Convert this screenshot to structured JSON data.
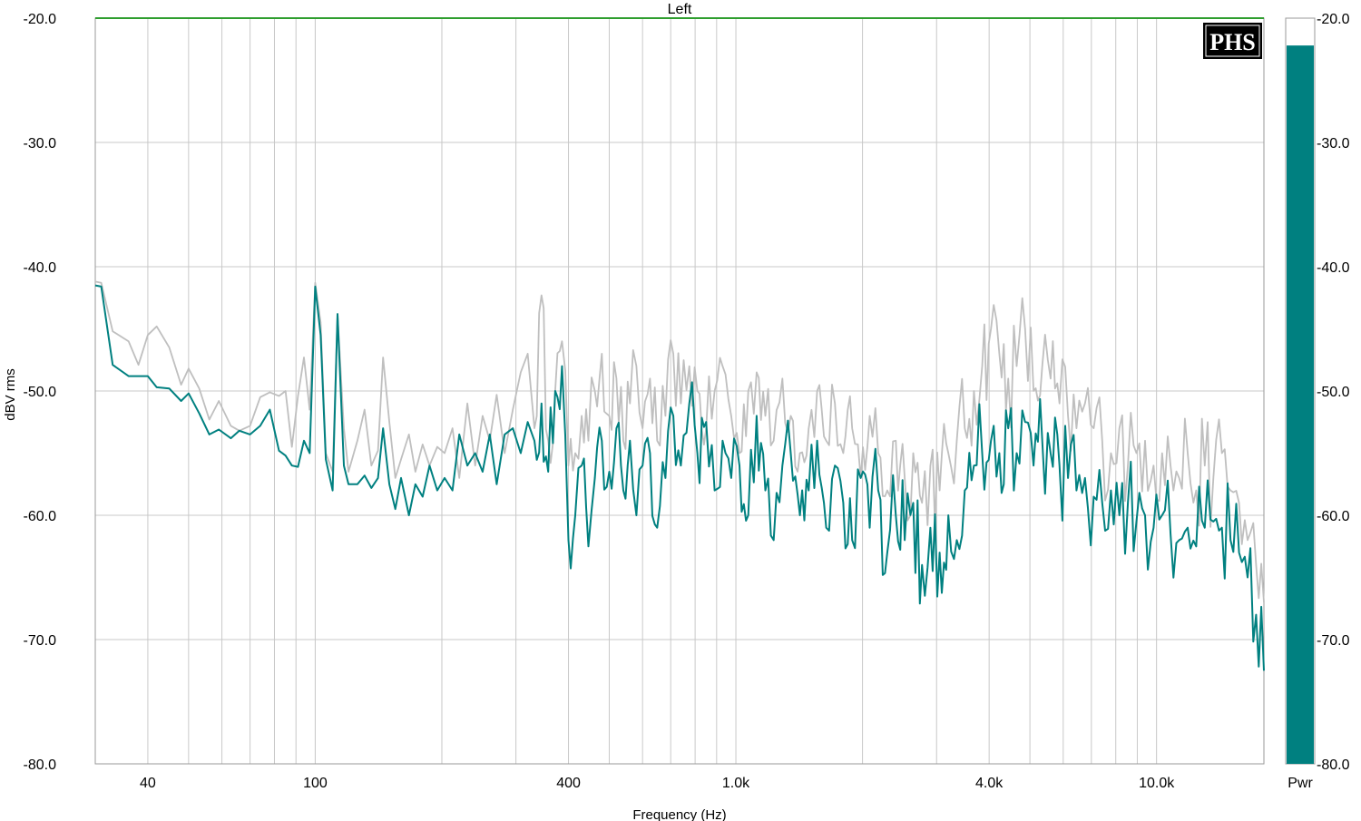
{
  "chart_data": {
    "type": "line",
    "title": "Left",
    "xlabel": "Frequency (Hz)",
    "ylabel": "dBV rms",
    "x_scale": "log",
    "xlim": [
      30,
      18000
    ],
    "ylim": [
      -80,
      -20
    ],
    "x_ticks": [
      {
        "value": 40,
        "label": "40"
      },
      {
        "value": 100,
        "label": "100"
      },
      {
        "value": 400,
        "label": "400"
      },
      {
        "value": 1000,
        "label": "1.0k"
      },
      {
        "value": 4000,
        "label": "4.0k"
      },
      {
        "value": 10000,
        "label": "10.0k"
      }
    ],
    "y_ticks": [
      {
        "value": -20,
        "label": "-20.0"
      },
      {
        "value": -30,
        "label": "-30.0"
      },
      {
        "value": -40,
        "label": "-40.0"
      },
      {
        "value": -50,
        "label": "-50.0"
      },
      {
        "value": -60,
        "label": "-60.0"
      },
      {
        "value": -70,
        "label": "-70.0"
      },
      {
        "value": -80,
        "label": "-80.0"
      }
    ],
    "grid": true,
    "reference_line": {
      "y": -20,
      "color": "#2e9e2e"
    },
    "series": [
      {
        "color": "#bfbfbf",
        "points": [
          [
            30,
            -41.2
          ],
          [
            31,
            -41.3
          ],
          [
            33,
            -45.2
          ],
          [
            36,
            -46
          ],
          [
            38,
            -47.9
          ],
          [
            40,
            -45.5
          ],
          [
            42,
            -44.8
          ],
          [
            45,
            -46.5
          ],
          [
            48,
            -49.5
          ],
          [
            50,
            -48.2
          ],
          [
            53,
            -49.8
          ],
          [
            56,
            -52.3
          ],
          [
            59,
            -50.8
          ],
          [
            63,
            -52.8
          ],
          [
            66,
            -53.2
          ],
          [
            70,
            -52.8
          ],
          [
            74,
            -50.5
          ],
          [
            78,
            -50.1
          ],
          [
            82,
            -50.4
          ],
          [
            85,
            -50
          ],
          [
            88,
            -54.5
          ],
          [
            91,
            -50.4
          ],
          [
            94,
            -47.3
          ],
          [
            97,
            -51.5
          ],
          [
            100,
            -41.3
          ],
          [
            103,
            -44.5
          ],
          [
            106,
            -55
          ],
          [
            110,
            -56.5
          ],
          [
            113,
            -43.8
          ],
          [
            117,
            -53
          ],
          [
            120,
            -56.5
          ],
          [
            126,
            -54
          ],
          [
            131,
            -51.5
          ],
          [
            136,
            -56
          ],
          [
            141,
            -54.8
          ],
          [
            145,
            -47.3
          ],
          [
            150,
            -52.5
          ],
          [
            155,
            -57
          ],
          [
            160,
            -55.5
          ],
          [
            167,
            -53.5
          ],
          [
            173,
            -56.5
          ],
          [
            180,
            -54.3
          ],
          [
            187,
            -56
          ],
          [
            195,
            -54.5
          ],
          [
            203,
            -55
          ],
          [
            212,
            -53
          ],
          [
            220,
            -57
          ],
          [
            230,
            -51
          ],
          [
            240,
            -56
          ],
          [
            250,
            -52
          ],
          [
            260,
            -54
          ],
          [
            270,
            -50.3
          ],
          [
            282,
            -55
          ],
          [
            295,
            -51.5
          ],
          [
            308,
            -48.5
          ],
          [
            320,
            -47
          ],
          [
            332,
            -53
          ],
          [
            345,
            -42.3
          ],
          [
            358,
            -54
          ],
          [
            372,
            -50
          ],
          [
            386,
            -46
          ],
          [
            400,
            -56
          ],
          [
            415,
            -55
          ],
          [
            430,
            -52
          ],
          [
            446,
            -54
          ],
          [
            462,
            -50
          ],
          [
            480,
            -47
          ],
          [
            500,
            -52
          ],
          [
            520,
            -49
          ],
          [
            540,
            -54
          ],
          [
            560,
            -51
          ],
          [
            580,
            -48
          ],
          [
            600,
            -53
          ],
          [
            625,
            -49
          ],
          [
            650,
            -54
          ],
          [
            680,
            -52
          ],
          [
            710,
            -47
          ],
          [
            740,
            -51
          ],
          [
            775,
            -48
          ],
          [
            810,
            -50
          ],
          [
            850,
            -53
          ],
          [
            890,
            -50
          ],
          [
            930,
            -48
          ],
          [
            975,
            -52
          ],
          [
            1020,
            -55
          ],
          [
            1070,
            -50
          ],
          [
            1120,
            -48.5
          ],
          [
            1175,
            -52
          ],
          [
            1230,
            -54
          ],
          [
            1290,
            -49
          ],
          [
            1350,
            -52
          ],
          [
            1420,
            -55
          ],
          [
            1490,
            -53
          ],
          [
            1560,
            -50
          ],
          [
            1640,
            -54
          ],
          [
            1720,
            -51
          ],
          [
            1800,
            -55
          ],
          [
            1890,
            -53
          ],
          [
            1980,
            -57
          ],
          [
            2080,
            -52
          ],
          [
            2180,
            -55
          ],
          [
            2290,
            -58
          ],
          [
            2400,
            -54
          ],
          [
            2520,
            -57
          ],
          [
            2640,
            -55
          ],
          [
            2770,
            -59
          ],
          [
            2900,
            -56
          ],
          [
            3050,
            -58
          ],
          [
            3200,
            -55
          ],
          [
            3350,
            -54
          ],
          [
            3500,
            -53
          ],
          [
            3680,
            -50
          ],
          [
            3850,
            -48
          ],
          [
            4040,
            -45
          ],
          [
            4230,
            -47
          ],
          [
            4440,
            -49
          ],
          [
            4650,
            -48
          ],
          [
            4870,
            -45
          ],
          [
            5100,
            -50
          ],
          [
            5350,
            -48
          ],
          [
            5600,
            -49
          ],
          [
            5880,
            -51
          ],
          [
            6160,
            -52
          ],
          [
            6450,
            -53
          ],
          [
            6760,
            -51
          ],
          [
            7090,
            -53
          ],
          [
            7430,
            -54
          ],
          [
            7790,
            -55
          ],
          [
            8160,
            -53
          ],
          [
            8550,
            -56
          ],
          [
            8960,
            -55
          ],
          [
            9390,
            -54
          ],
          [
            9840,
            -56
          ],
          [
            10310,
            -55
          ],
          [
            10800,
            -56
          ],
          [
            11320,
            -57
          ],
          [
            11860,
            -55
          ],
          [
            12430,
            -58
          ],
          [
            13020,
            -56
          ],
          [
            13650,
            -57
          ],
          [
            14300,
            -55
          ],
          [
            14990,
            -58
          ],
          [
            15710,
            -59
          ],
          [
            16460,
            -62
          ],
          [
            17250,
            -64
          ],
          [
            18000,
            -67
          ]
        ]
      },
      {
        "color": "#008080",
        "points": [
          [
            30,
            -41.5
          ],
          [
            31,
            -41.6
          ],
          [
            33,
            -47.9
          ],
          [
            36,
            -48.8
          ],
          [
            38,
            -48.8
          ],
          [
            40,
            -48.8
          ],
          [
            42,
            -49.7
          ],
          [
            45,
            -49.8
          ],
          [
            48,
            -50.8
          ],
          [
            50,
            -50.2
          ],
          [
            53,
            -51.8
          ],
          [
            56,
            -53.5
          ],
          [
            59,
            -53.1
          ],
          [
            63,
            -53.8
          ],
          [
            66,
            -53.2
          ],
          [
            70,
            -53.5
          ],
          [
            74,
            -52.8
          ],
          [
            78,
            -51.5
          ],
          [
            82,
            -54.8
          ],
          [
            85,
            -55.2
          ],
          [
            88,
            -56
          ],
          [
            91,
            -56.1
          ],
          [
            94,
            -54
          ],
          [
            97,
            -55
          ],
          [
            100,
            -41.6
          ],
          [
            103,
            -45.5
          ],
          [
            106,
            -55.5
          ],
          [
            110,
            -58
          ],
          [
            113,
            -43.8
          ],
          [
            117,
            -56
          ],
          [
            120,
            -57.5
          ],
          [
            126,
            -57.5
          ],
          [
            131,
            -56.8
          ],
          [
            136,
            -57.8
          ],
          [
            141,
            -57
          ],
          [
            145,
            -53
          ],
          [
            150,
            -57.5
          ],
          [
            155,
            -59.5
          ],
          [
            160,
            -57
          ],
          [
            167,
            -60
          ],
          [
            173,
            -57.5
          ],
          [
            180,
            -58.5
          ],
          [
            187,
            -56
          ],
          [
            195,
            -58
          ],
          [
            203,
            -57
          ],
          [
            212,
            -58
          ],
          [
            220,
            -53.5
          ],
          [
            230,
            -56
          ],
          [
            240,
            -55
          ],
          [
            250,
            -56.5
          ],
          [
            260,
            -53.5
          ],
          [
            270,
            -57.5
          ],
          [
            282,
            -53.5
          ],
          [
            295,
            -53
          ],
          [
            308,
            -55
          ],
          [
            320,
            -52.5
          ],
          [
            332,
            -54
          ],
          [
            345,
            -51
          ],
          [
            358,
            -56.5
          ],
          [
            372,
            -50
          ],
          [
            386,
            -48
          ],
          [
            400,
            -62
          ],
          [
            415,
            -60
          ],
          [
            430,
            -56
          ],
          [
            446,
            -62.5
          ],
          [
            462,
            -57
          ],
          [
            480,
            -54
          ],
          [
            500,
            -56.5
          ],
          [
            520,
            -53
          ],
          [
            540,
            -58
          ],
          [
            560,
            -54
          ],
          [
            580,
            -60
          ],
          [
            600,
            -56
          ],
          [
            625,
            -55
          ],
          [
            650,
            -61
          ],
          [
            680,
            -57
          ],
          [
            710,
            -52
          ],
          [
            740,
            -56
          ],
          [
            775,
            -51
          ],
          [
            810,
            -55
          ],
          [
            850,
            -52.5
          ],
          [
            890,
            -58
          ],
          [
            930,
            -54
          ],
          [
            975,
            -57
          ],
          [
            1020,
            -56
          ],
          [
            1070,
            -60
          ],
          [
            1120,
            -52
          ],
          [
            1175,
            -58
          ],
          [
            1230,
            -62
          ],
          [
            1290,
            -56
          ],
          [
            1350,
            -55
          ],
          [
            1420,
            -60
          ],
          [
            1490,
            -58
          ],
          [
            1560,
            -54
          ],
          [
            1640,
            -61
          ],
          [
            1720,
            -56
          ],
          [
            1800,
            -59
          ],
          [
            1890,
            -62
          ],
          [
            1980,
            -57
          ],
          [
            2080,
            -61
          ],
          [
            2180,
            -58
          ],
          [
            2290,
            -63
          ],
          [
            2400,
            -60
          ],
          [
            2520,
            -62
          ],
          [
            2640,
            -59
          ],
          [
            2770,
            -64
          ],
          [
            2900,
            -61
          ],
          [
            3050,
            -63
          ],
          [
            3200,
            -60
          ],
          [
            3350,
            -62
          ],
          [
            3500,
            -58
          ],
          [
            3680,
            -56
          ],
          [
            3850,
            -55
          ],
          [
            4040,
            -54
          ],
          [
            4230,
            -55
          ],
          [
            4440,
            -53
          ],
          [
            4650,
            -55
          ],
          [
            4870,
            -52.5
          ],
          [
            5100,
            -56
          ],
          [
            5350,
            -54
          ],
          [
            5600,
            -55
          ],
          [
            5880,
            -56
          ],
          [
            6160,
            -57
          ],
          [
            6450,
            -58
          ],
          [
            6760,
            -57
          ],
          [
            7090,
            -58.5
          ],
          [
            7430,
            -59
          ],
          [
            7790,
            -58
          ],
          [
            8160,
            -60
          ],
          [
            8550,
            -59
          ],
          [
            8960,
            -60.5
          ],
          [
            9390,
            -60
          ],
          [
            9840,
            -61
          ],
          [
            10310,
            -60
          ],
          [
            10800,
            -61.5
          ],
          [
            11320,
            -62
          ],
          [
            11860,
            -61
          ],
          [
            12430,
            -62.5
          ],
          [
            13020,
            -61
          ],
          [
            13650,
            -60.5
          ],
          [
            14300,
            -61
          ],
          [
            14990,
            -62
          ],
          [
            15710,
            -63
          ],
          [
            16460,
            -65
          ],
          [
            17250,
            -68
          ],
          [
            18000,
            -72.5
          ]
        ]
      }
    ],
    "meter": {
      "label": "Pwr",
      "value": -22.2,
      "range": [
        -80,
        -20
      ],
      "ticks": [
        "-20.0",
        "-30.0",
        "-40.0",
        "-50.0",
        "-60.0",
        "-70.0",
        "-80.0"
      ],
      "fill_color": "#008080"
    }
  },
  "logo": {
    "text": "PHS"
  }
}
